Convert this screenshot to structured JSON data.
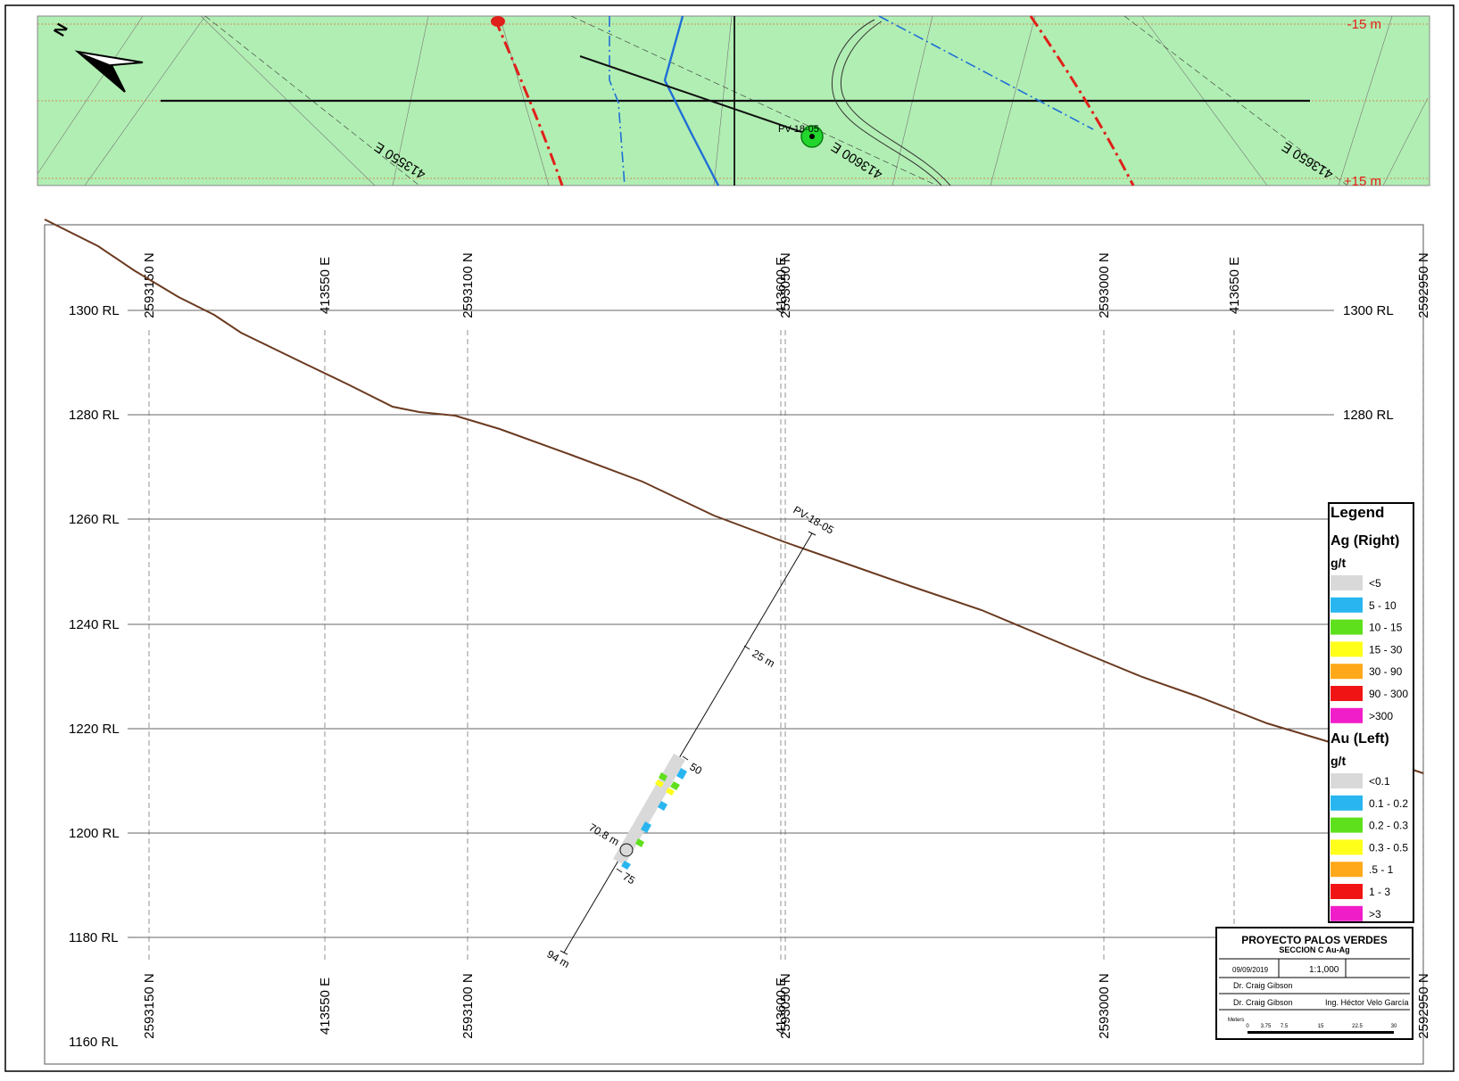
{
  "plan": {
    "depth_top": "-15 m",
    "depth_bottom": "+15 m",
    "north_letter": "N",
    "easting_labels": [
      "413550 E",
      "413600 E",
      "413650 E"
    ],
    "hole_label": "PV-18-05"
  },
  "section": {
    "rl_labels": [
      "1300 RL",
      "1280 RL",
      "1260 RL",
      "1240 RL",
      "1220 RL",
      "1200 RL",
      "1180 RL",
      "1160 RL"
    ],
    "grid_labels": [
      "2593150 N",
      "413550 E",
      "2593100 N",
      "413600 E",
      "2593050 N",
      "2593000 N",
      "413650 E",
      "2592950 N"
    ],
    "hole": {
      "name": "PV-18-05",
      "depth_marks": [
        "25 m",
        "50",
        "75",
        "94 m"
      ],
      "intercept": "70.8 m"
    }
  },
  "legend": {
    "title": "Legend",
    "ag_header": "Ag (Right)",
    "ag_unit": "g/t",
    "ag_items": [
      {
        "label": "<5",
        "color": "#d9d9d9"
      },
      {
        "label": "5 - 10",
        "color": "#29b6f0"
      },
      {
        "label": "10 - 15",
        "color": "#5fe01c"
      },
      {
        "label": "15 - 30",
        "color": "#ffff1a"
      },
      {
        "label": "30 - 90",
        "color": "#ffa91a"
      },
      {
        "label": "90 - 300",
        "color": "#f01414"
      },
      {
        "label": ">300",
        "color": "#f01ec8"
      }
    ],
    "au_header": "Au (Left)",
    "au_unit": "g/t",
    "au_items": [
      {
        "label": "<0.1",
        "color": "#d9d9d9"
      },
      {
        "label": "0.1 - 0.2",
        "color": "#29b6f0"
      },
      {
        "label": "0.2 - 0.3",
        "color": "#5fe01c"
      },
      {
        "label": "0.3 - 0.5",
        "color": "#ffff1a"
      },
      {
        "label": ".5 - 1",
        "color": "#ffa91a"
      },
      {
        "label": "1 - 3",
        "color": "#f01414"
      },
      {
        "label": ">3",
        "color": "#f01ec8"
      }
    ]
  },
  "title_block": {
    "project": "PROYECTO PALOS VERDES",
    "section": "SECCION C Au-Ag",
    "date": "09/09/2019",
    "scale": "1:1,000",
    "drawn_by": "Dr. Craig Gibson",
    "checked_by": "Dr. Craig Gibson",
    "approved_by": "Ing. Héctor Velo García",
    "units": "Meters",
    "scale_ticks": [
      "0",
      "3.75",
      "7.5",
      "15",
      "22.5",
      "30"
    ]
  },
  "colors": {
    "plan_fill": "#b1eeb3",
    "topo_line": "#6b3a20",
    "fault_red": "#e0201a",
    "river_blue": "#1f6fd6",
    "hole_green": "#22d62e",
    "label_red": "#e0201a"
  }
}
